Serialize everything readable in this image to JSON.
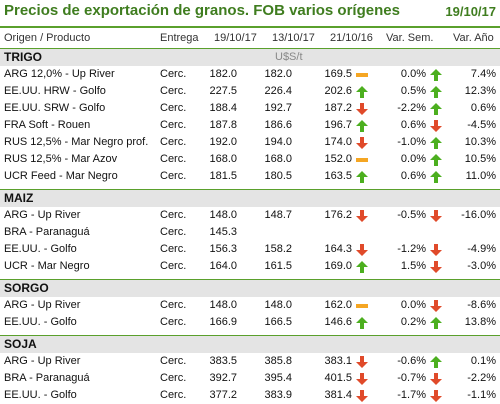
{
  "title": "Precios de exportación de granos. FOB varios orígenes",
  "date": "19/10/17",
  "headers": {
    "origin": "Origen / Producto",
    "entrega": "Entrega",
    "d1": "19/10/17",
    "d2": "13/10/17",
    "d3": "21/10/16",
    "varsem": "Var. Sem.",
    "varanio": "Var. Año"
  },
  "unit": "U$S/t",
  "colors": {
    "up": "#4caf1f",
    "down": "#e04a2a",
    "flat": "#f5a623",
    "accent": "#5aa02c"
  },
  "sections": [
    {
      "name": "TRIGO",
      "rows": [
        {
          "origin": "ARG 12,0% - Up River",
          "entrega": "Cerc.",
          "v1": "182.0",
          "v2": "182.0",
          "v3": "169.5",
          "i1": "flat",
          "p1": "0.0%",
          "i2": "up",
          "p2": "7.4%"
        },
        {
          "origin": "EE.UU. HRW - Golfo",
          "entrega": "Cerc.",
          "v1": "227.5",
          "v2": "226.4",
          "v3": "202.6",
          "i1": "up",
          "p1": "0.5%",
          "i2": "up",
          "p2": "12.3%"
        },
        {
          "origin": "EE.UU. SRW - Golfo",
          "entrega": "Cerc.",
          "v1": "188.4",
          "v2": "192.7",
          "v3": "187.2",
          "i1": "down",
          "p1": "-2.2%",
          "i2": "up",
          "p2": "0.6%"
        },
        {
          "origin": "FRA Soft - Rouen",
          "entrega": "Cerc.",
          "v1": "187.8",
          "v2": "186.6",
          "v3": "196.7",
          "i1": "up",
          "p1": "0.6%",
          "i2": "down",
          "p2": "-4.5%"
        },
        {
          "origin": "RUS 12,5% - Mar Negro prof.",
          "entrega": "Cerc.",
          "v1": "192.0",
          "v2": "194.0",
          "v3": "174.0",
          "i1": "down",
          "p1": "-1.0%",
          "i2": "up",
          "p2": "10.3%"
        },
        {
          "origin": "RUS 12,5% - Mar Azov",
          "entrega": "Cerc.",
          "v1": "168.0",
          "v2": "168.0",
          "v3": "152.0",
          "i1": "flat",
          "p1": "0.0%",
          "i2": "up",
          "p2": "10.5%"
        },
        {
          "origin": "UCR Feed - Mar Negro",
          "entrega": "Cerc.",
          "v1": "181.5",
          "v2": "180.5",
          "v3": "163.5",
          "i1": "up",
          "p1": "0.6%",
          "i2": "up",
          "p2": "11.0%"
        }
      ]
    },
    {
      "name": "MAIZ",
      "rows": [
        {
          "origin": "ARG - Up River",
          "entrega": "Cerc.",
          "v1": "148.0",
          "v2": "148.7",
          "v3": "176.2",
          "i1": "down",
          "p1": "-0.5%",
          "i2": "down",
          "p2": "-16.0%"
        },
        {
          "origin": "BRA - Paranaguá",
          "entrega": "Cerc.",
          "v1": "145.3",
          "v2": "",
          "v3": "",
          "i1": "",
          "p1": "",
          "i2": "",
          "p2": ""
        },
        {
          "origin": "EE.UU. - Golfo",
          "entrega": "Cerc.",
          "v1": "156.3",
          "v2": "158.2",
          "v3": "164.3",
          "i1": "down",
          "p1": "-1.2%",
          "i2": "down",
          "p2": "-4.9%"
        },
        {
          "origin": "UCR - Mar Negro",
          "entrega": "Cerc.",
          "v1": "164.0",
          "v2": "161.5",
          "v3": "169.0",
          "i1": "up",
          "p1": "1.5%",
          "i2": "down",
          "p2": "-3.0%"
        }
      ]
    },
    {
      "name": "SORGO",
      "rows": [
        {
          "origin": "ARG - Up River",
          "entrega": "Cerc.",
          "v1": "148.0",
          "v2": "148.0",
          "v3": "162.0",
          "i1": "flat",
          "p1": "0.0%",
          "i2": "down",
          "p2": "-8.6%"
        },
        {
          "origin": "EE.UU. - Golfo",
          "entrega": "Cerc.",
          "v1": "166.9",
          "v2": "166.5",
          "v3": "146.6",
          "i1": "up",
          "p1": "0.2%",
          "i2": "up",
          "p2": "13.8%"
        }
      ]
    },
    {
      "name": "SOJA",
      "rows": [
        {
          "origin": "ARG - Up River",
          "entrega": "Cerc.",
          "v1": "383.5",
          "v2": "385.8",
          "v3": "383.1",
          "i1": "down",
          "p1": "-0.6%",
          "i2": "up",
          "p2": "0.1%"
        },
        {
          "origin": "BRA - Paranaguá",
          "entrega": "Cerc.",
          "v1": "392.7",
          "v2": "395.4",
          "v3": "401.5",
          "i1": "down",
          "p1": "-0.7%",
          "i2": "down",
          "p2": "-2.2%"
        },
        {
          "origin": "EE.UU. - Golfo",
          "entrega": "Cerc.",
          "v1": "377.2",
          "v2": "383.9",
          "v3": "381.4",
          "i1": "down",
          "p1": "-1.7%",
          "i2": "down",
          "p2": "-1.1%"
        }
      ]
    }
  ]
}
